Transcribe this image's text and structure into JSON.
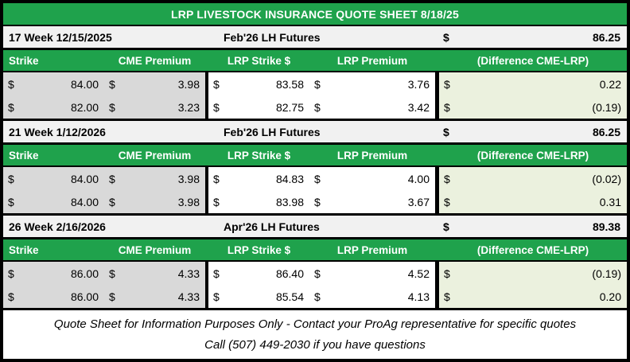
{
  "title": "LRP LIVESTOCK INSURANCE QUOTE SHEET 8/18/25",
  "currency_symbol": "$",
  "columns": {
    "strike": "Strike",
    "cme_premium": "CME Premium",
    "lrp_strike": "LRP Strike $",
    "lrp_premium": "LRP Premium",
    "difference": "(Difference CME-LRP)"
  },
  "sections": [
    {
      "week_label": "17 Week 12/15/2025",
      "futures_label": "Feb'26 LH Futures",
      "futures_price": "86.25",
      "rows": [
        {
          "strike": "84.00",
          "cme_premium": "3.98",
          "lrp_strike": "83.58",
          "lrp_premium": "3.76",
          "difference": "0.22"
        },
        {
          "strike": "82.00",
          "cme_premium": "3.23",
          "lrp_strike": "82.75",
          "lrp_premium": "3.42",
          "difference": "(0.19)"
        }
      ]
    },
    {
      "week_label": "21 Week 1/12/2026",
      "futures_label": "Feb'26 LH Futures",
      "futures_price": "86.25",
      "rows": [
        {
          "strike": "84.00",
          "cme_premium": "3.98",
          "lrp_strike": "84.83",
          "lrp_premium": "4.00",
          "difference": "(0.02)"
        },
        {
          "strike": "84.00",
          "cme_premium": "3.98",
          "lrp_strike": "83.98",
          "lrp_premium": "3.67",
          "difference": "0.31"
        }
      ]
    },
    {
      "week_label": "26 Week 2/16/2026",
      "futures_label": "Apr'26 LH Futures",
      "futures_price": "89.38",
      "rows": [
        {
          "strike": "86.00",
          "cme_premium": "4.33",
          "lrp_strike": "86.40",
          "lrp_premium": "4.52",
          "difference": "(0.19)"
        },
        {
          "strike": "86.00",
          "cme_premium": "4.33",
          "lrp_strike": "85.54",
          "lrp_premium": "4.13",
          "difference": "0.20"
        }
      ]
    }
  ],
  "footer": {
    "line1": "Quote Sheet for Information Purposes Only - Contact your ProAg representative for specific quotes",
    "line2": "Call (507) 449-2030 if you have questions"
  },
  "colors": {
    "header_green": "#1FA24C",
    "difference_light_green": "#EBF1DE",
    "strike_gray": "#D9D9D9",
    "week_row_gray": "#F1F1F1",
    "border_black": "#000000",
    "header_text": "#FFFFFF"
  }
}
